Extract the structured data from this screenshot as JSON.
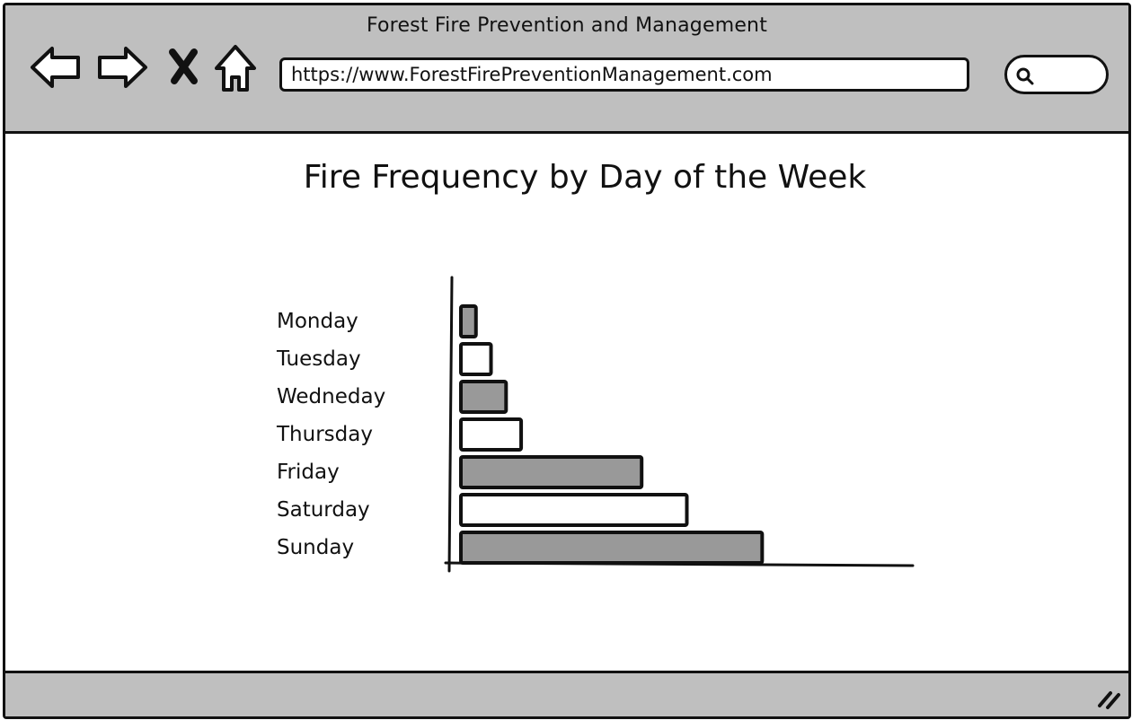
{
  "window": {
    "title": "Forest Fire Prevention and Management"
  },
  "toolbar": {
    "back_icon": "back-arrow-icon",
    "forward_icon": "forward-arrow-icon",
    "stop_icon": "close-icon",
    "home_icon": "home-icon",
    "url": "https://www.ForestFirePreventionManagement.com",
    "search_icon": "search-icon"
  },
  "colors": {
    "chrome": "#bfbfbf",
    "bar_gray": "#999999",
    "bar_white": "#ffffff",
    "stroke": "#111111"
  },
  "chart_data": {
    "type": "bar",
    "orientation": "horizontal",
    "title": "Fire Frequency by Day of the Week",
    "xlabel": "",
    "ylabel": "",
    "categories": [
      "Monday",
      "Tuesday",
      "Wedneday",
      "Thursday",
      "Friday",
      "Saturday",
      "Sunday"
    ],
    "values": [
      1,
      2,
      3,
      4,
      12,
      15,
      20
    ],
    "bar_fill": [
      "gray",
      "white",
      "gray",
      "white",
      "gray",
      "white",
      "gray"
    ],
    "xlim": [
      0,
      30
    ],
    "grid": false,
    "legend": "none"
  }
}
